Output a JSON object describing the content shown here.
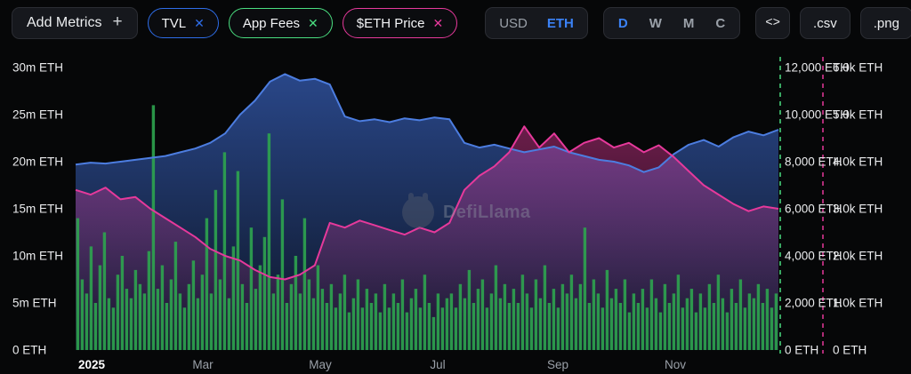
{
  "toolbar": {
    "add_metrics_label": "Add Metrics",
    "add_metrics_plus": "+",
    "chips": [
      {
        "label": "TVL",
        "close": "✕",
        "color": "#2e6de8"
      },
      {
        "label": "App Fees",
        "close": "✕",
        "color": "#4ade80"
      },
      {
        "label": "$ETH Price",
        "close": "✕",
        "color": "#e6399b"
      }
    ],
    "currency": {
      "options": [
        "USD",
        "ETH"
      ],
      "active": "ETH"
    },
    "ranges": {
      "options": [
        "D",
        "W",
        "M",
        "C"
      ],
      "active": "D"
    },
    "embed_label": "<>",
    "csv_label": ".csv",
    "png_label": ".png"
  },
  "watermark": "DefiLlama",
  "chart_data": {
    "type": "mixed",
    "title": "",
    "grid": false,
    "x_axis": {
      "labels": [
        "2025",
        "Mar",
        "May",
        "Jul",
        "Sep",
        "Nov"
      ]
    },
    "left_axis": {
      "name": "TVL",
      "ticks": [
        "30m ETH",
        "25m ETH",
        "20m ETH",
        "15m ETH",
        "10m ETH",
        "5m ETH",
        "0 ETH"
      ],
      "range_m": [
        0,
        30
      ]
    },
    "right_axis_fees": {
      "name": "App Fees",
      "color": "#4ade80",
      "ticks": [
        "12,000 ETH",
        "10,000 ETH",
        "8,000 ETH",
        "6,000 ETH",
        "4,000 ETH",
        "2,000 ETH",
        "0 ETH"
      ],
      "range": [
        0,
        12000
      ]
    },
    "right_axis_price": {
      "name": "$ETH Price",
      "color": "#e6399b",
      "ticks": [
        "6.0k ETH",
        "5.0k ETH",
        "4.0k ETH",
        "3.0k ETH",
        "2.0k ETH",
        "1.0k ETH",
        "0 ETH"
      ],
      "range": [
        0,
        6000
      ]
    },
    "series": [
      {
        "name": "TVL",
        "type": "area",
        "axis": "left",
        "unit": "m ETH",
        "color": "#4c7de0",
        "fill_top": "#2b4a8f",
        "fill_bottom": "#0d1526",
        "values": [
          19.7,
          19.9,
          19.8,
          20.0,
          20.2,
          20.4,
          20.6,
          21.0,
          21.4,
          22.0,
          23.0,
          25.0,
          26.5,
          28.5,
          29.3,
          28.6,
          28.8,
          28.2,
          24.8,
          24.3,
          24.5,
          24.2,
          24.6,
          24.4,
          24.7,
          24.5,
          22.0,
          21.5,
          21.8,
          21.4,
          21.0,
          21.3,
          21.6,
          21.0,
          20.6,
          20.2,
          20.0,
          19.6,
          18.9,
          19.4,
          20.8,
          21.8,
          22.3,
          21.6,
          22.6,
          23.2,
          22.8,
          23.4
        ]
      },
      {
        "name": "App Fees",
        "type": "bar",
        "axis": "right_fees",
        "unit": "ETH",
        "color": "#2ea44f",
        "values": [
          5600,
          3000,
          2400,
          4400,
          2000,
          3600,
          5000,
          2200,
          1800,
          3200,
          4000,
          2600,
          2200,
          3400,
          2800,
          2400,
          4200,
          10400,
          2600,
          3600,
          2000,
          3000,
          4600,
          2400,
          1800,
          2800,
          3800,
          2200,
          3200,
          5600,
          2400,
          6800,
          3000,
          8400,
          2200,
          4400,
          7600,
          2800,
          2000,
          5200,
          2600,
          3600,
          4800,
          9200,
          2400,
          3200,
          6400,
          2000,
          2800,
          4000,
          2400,
          5600,
          3000,
          2200,
          3600,
          2600,
          2000,
          2800,
          1800,
          2400,
          3200,
          1600,
          2200,
          3000,
          1800,
          2600,
          2000,
          2400,
          1600,
          2800,
          1800,
          2400,
          2000,
          3000,
          1600,
          2200,
          2600,
          1800,
          3200,
          2000,
          1400,
          2400,
          1800,
          2200,
          2400,
          1800,
          2800,
          2200,
          3400,
          2000,
          2600,
          3000,
          1800,
          2400,
          3600,
          2200,
          2800,
          2000,
          2600,
          2000,
          3200,
          2400,
          1800,
          3000,
          2200,
          3600,
          2000,
          2600,
          1800,
          2800,
          2400,
          3200,
          2200,
          2800,
          5200,
          2000,
          3000,
          2400,
          1800,
          3400,
          2200,
          2600,
          2000,
          3000,
          1600,
          2400,
          2000,
          2600,
          1800,
          3000,
          2200,
          1600,
          2800,
          2000,
          2400,
          3200,
          1800,
          2200,
          2600,
          1600,
          2400,
          1800,
          2800,
          2000,
          3200,
          2200,
          1600,
          2600,
          2000,
          3000,
          1800,
          2400,
          2200,
          2800,
          2000,
          2600,
          1800,
          2400
        ]
      },
      {
        "name": "$ETH Price",
        "type": "line",
        "axis": "right_price",
        "unit": "ETH",
        "color": "#e6399b",
        "fill_top": "#e6399b",
        "values": [
          3400,
          3300,
          3450,
          3200,
          3250,
          3000,
          2800,
          2600,
          2400,
          2150,
          2000,
          1900,
          1700,
          1550,
          1500,
          1600,
          1800,
          2700,
          2600,
          2750,
          2650,
          2550,
          2450,
          2600,
          2500,
          2700,
          3400,
          3700,
          3900,
          4200,
          4750,
          4300,
          4600,
          4200,
          4400,
          4500,
          4300,
          4400,
          4200,
          4350,
          4100,
          3800,
          3500,
          3300,
          3100,
          2950,
          3050,
          3000
        ]
      }
    ]
  }
}
